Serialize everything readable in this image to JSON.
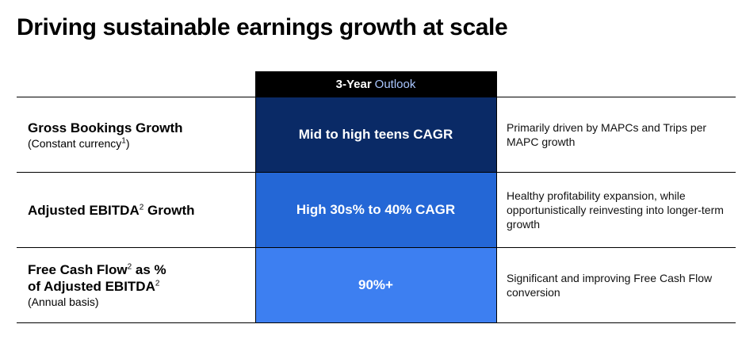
{
  "page": {
    "title": "Driving sustainable earnings growth at scale"
  },
  "table": {
    "header": {
      "prefix": "3-Year",
      "accent": "Outlook",
      "accent_color": "#a9c6ff"
    },
    "rows": [
      {
        "metric_part1": "Gross Bookings Growth",
        "metric_part1_sup": "",
        "metric_part2": "",
        "metric_part2_sup": "",
        "metric_line2": "",
        "metric_line2_sup": "",
        "note": "(Constant currency",
        "note_sup": "1",
        "note_end": ")",
        "outlook": "Mid to high teens CAGR",
        "outlook_color": "#0a2a66",
        "comment": "Primarily driven by MAPCs and Trips per MAPC growth"
      },
      {
        "metric_part1": "Adjusted EBITDA",
        "metric_part1_sup": "2",
        "metric_part2": " Growth",
        "outlook": "High 30s% to 40% CAGR",
        "outlook_color": "#2467d6",
        "comment": "Healthy profitability expansion, while opportunistically reinvesting into longer-term growth"
      },
      {
        "metric_part1": "Free Cash Flow",
        "metric_part1_sup": "2",
        "metric_part2": " as %",
        "metric_line2": "of Adjusted EBITDA",
        "metric_line2_sup": "2",
        "note": "(Annual basis)",
        "outlook": "90%+",
        "outlook_color": "#3d7ff1",
        "comment": "Significant and improving Free Cash Flow conversion"
      }
    ]
  }
}
